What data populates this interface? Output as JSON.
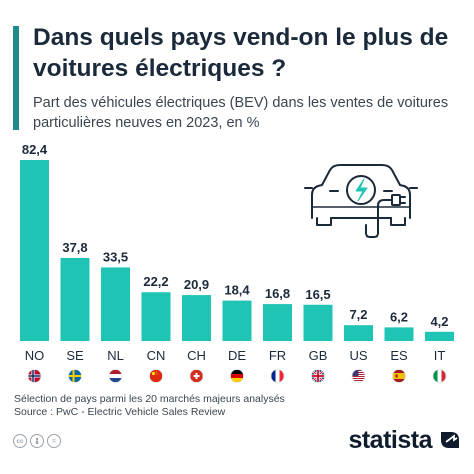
{
  "title": "Dans quels pays vend-on le plus de voitures électriques ?",
  "subtitle": "Part des véhicules électriques (BEV) dans les ventes de voitures particulières neuves en 2023, en %",
  "footnote": [
    "Sélection de pays parmi les 20 marchés majeurs analysés",
    "Source : PwC - Electric Vehicle Sales Review"
  ],
  "brand": "statista",
  "icons": [
    "cc-icon",
    "person-icon",
    "equals-icon",
    "electric-car-icon",
    "statista-logo-icon"
  ],
  "colors": {
    "bar": "#1fc4b4",
    "accent": "#1f8a8a",
    "text": "#1b2a3a"
  },
  "chart_data": {
    "type": "bar",
    "categories": [
      "NO",
      "SE",
      "NL",
      "CN",
      "CH",
      "DE",
      "FR",
      "GB",
      "US",
      "ES",
      "IT"
    ],
    "values": [
      82.4,
      37.8,
      33.5,
      22.2,
      20.9,
      18.4,
      16.8,
      16.5,
      7.2,
      6.2,
      4.2
    ],
    "value_labels": [
      "82,4",
      "37,8",
      "33,5",
      "22,2",
      "20,9",
      "18,4",
      "16,8",
      "16,5",
      "7,2",
      "6,2",
      "4,2"
    ],
    "flags": [
      "norway-flag-icon",
      "sweden-flag-icon",
      "netherlands-flag-icon",
      "china-flag-icon",
      "switzerland-flag-icon",
      "germany-flag-icon",
      "france-flag-icon",
      "uk-flag-icon",
      "usa-flag-icon",
      "spain-flag-icon",
      "italy-flag-icon"
    ],
    "ylim": [
      0,
      82.4
    ],
    "grid": false
  }
}
